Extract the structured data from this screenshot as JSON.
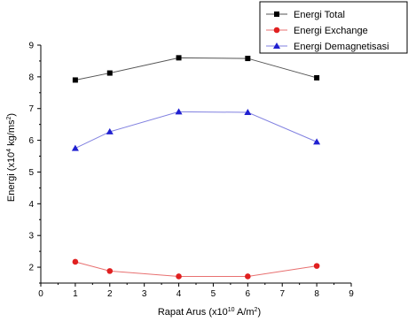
{
  "chart_data": {
    "type": "line",
    "x": [
      1,
      2,
      4,
      6,
      8
    ],
    "series": [
      {
        "name": "Energi Total",
        "values": [
          7.9,
          8.12,
          8.6,
          8.58,
          7.97
        ],
        "color": "#000000",
        "marker": "square"
      },
      {
        "name": "Energi Exchange",
        "values": [
          2.17,
          1.88,
          1.71,
          1.71,
          2.04
        ],
        "color": "#e02020",
        "marker": "circle"
      },
      {
        "name": "Energi Demagnetisasi",
        "values": [
          5.75,
          6.27,
          6.9,
          6.88,
          5.95
        ],
        "color": "#2020d0",
        "marker": "triangle"
      }
    ],
    "xlabel": {
      "pre": "Rapat Arus (x10",
      "sup1": "10",
      "mid": " A/m",
      "sup2": "2",
      "post": ")"
    },
    "ylabel": {
      "pre": "Energi (x10",
      "sup1": "4",
      "mid": " kg/ms",
      "sup2": "2",
      "post": ")"
    },
    "xlim": [
      0,
      9
    ],
    "ylim": [
      1.5,
      9
    ],
    "xticks": [
      0,
      1,
      2,
      3,
      4,
      5,
      6,
      7,
      8,
      9
    ],
    "yticks": [
      2,
      3,
      4,
      5,
      6,
      7,
      8,
      9
    ],
    "grid": false,
    "legend_position": "top-right"
  }
}
